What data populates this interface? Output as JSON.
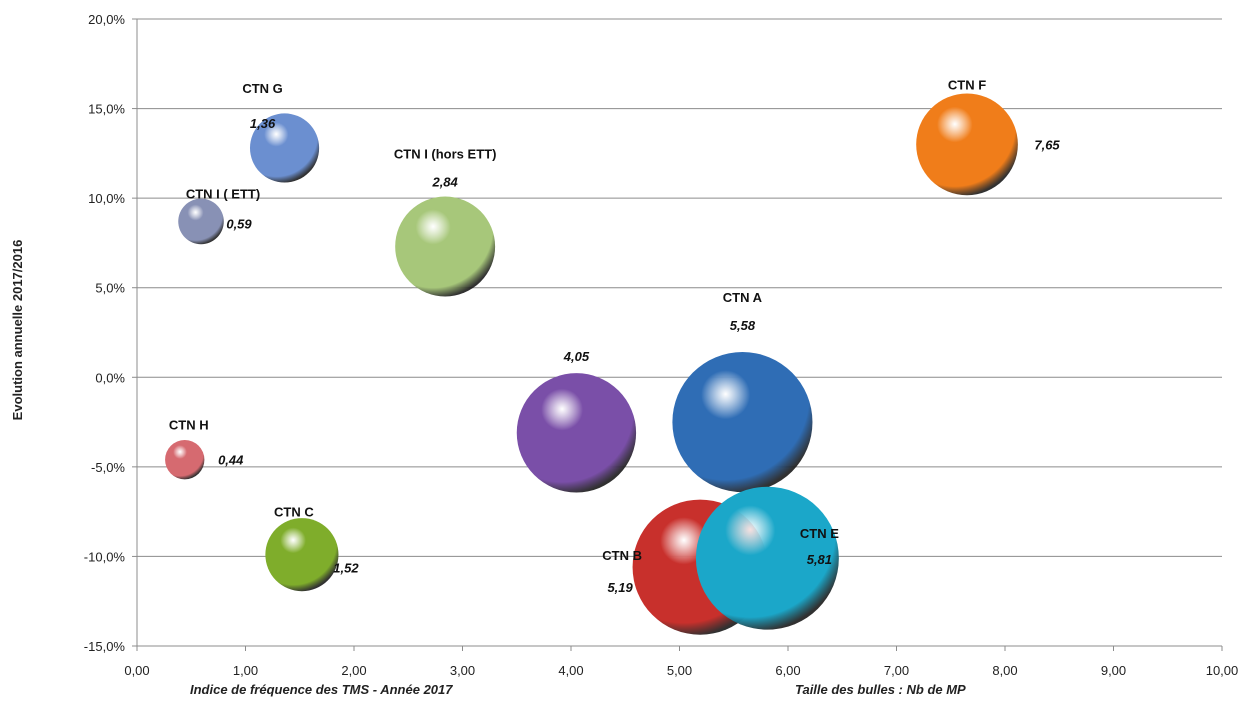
{
  "chart_data": {
    "type": "bubble",
    "xlabel": "Indice de fréquence des TMS - Année 2017",
    "ylabel": "Evolution annuelle 2017/2016",
    "size_note": "Taille des bulles : Nb de MP",
    "xlim": [
      0,
      10
    ],
    "ylim": [
      -15,
      20
    ],
    "grid": true,
    "x_ticks": [
      "0,00",
      "1,00",
      "2,00",
      "3,00",
      "4,00",
      "5,00",
      "6,00",
      "7,00",
      "8,00",
      "9,00",
      "10,00"
    ],
    "y_ticks": [
      "-15,0%",
      "-10,0%",
      "-5,0%",
      "0,0%",
      "5,0%",
      "10,0%",
      "15,0%",
      "20,0%"
    ],
    "series": [
      {
        "name": "CTN A",
        "x": 5.58,
        "y": -2.5,
        "size": 5.58,
        "value_label": "5,58",
        "color": "#2f6db5"
      },
      {
        "name": "",
        "x": 4.05,
        "y": -3.1,
        "size": 4.05,
        "value_label": "4,05",
        "color": "#7a4fa8"
      },
      {
        "name": "CTN B",
        "x": 5.19,
        "y": -10.6,
        "size": 5.19,
        "value_label": "5,19",
        "color": "#c8302c"
      },
      {
        "name": "CTN E",
        "x": 5.81,
        "y": -10.1,
        "size": 5.81,
        "value_label": "5,81",
        "color": "#1ba7c9"
      },
      {
        "name": "CTN F",
        "x": 7.65,
        "y": 13.0,
        "size": 7.65,
        "value_label": "7,65",
        "color": "#f07d1a"
      },
      {
        "name": "CTN G",
        "x": 1.36,
        "y": 12.8,
        "size": 1.36,
        "value_label": "1,36",
        "color": "#6b8fd0"
      },
      {
        "name": "CTN I (hors ETT)",
        "x": 2.84,
        "y": 7.3,
        "size": 2.84,
        "value_label": "2,84",
        "color": "#a7c77a"
      },
      {
        "name": "CTN I ( ETT)",
        "x": 0.59,
        "y": 8.7,
        "size": 0.59,
        "value_label": "0,59",
        "color": "#8891b5"
      },
      {
        "name": "CTN H",
        "x": 0.44,
        "y": -4.6,
        "size": 0.44,
        "value_label": "0,44",
        "color": "#d66a70"
      },
      {
        "name": "CTN C",
        "x": 1.52,
        "y": -9.9,
        "size": 1.52,
        "value_label": "1,52",
        "color": "#7fad2b"
      }
    ]
  }
}
